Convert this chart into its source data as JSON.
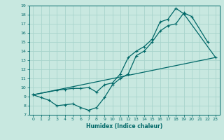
{
  "title": "",
  "xlabel": "Humidex (Indice chaleur)",
  "bg_color": "#c8e8e0",
  "grid_color": "#a8d4cc",
  "line_color": "#006868",
  "xmin": -0.5,
  "xmax": 23.5,
  "ymin": 7,
  "ymax": 19,
  "yticks": [
    7,
    8,
    9,
    10,
    11,
    12,
    13,
    14,
    15,
    16,
    17,
    18,
    19
  ],
  "xticks": [
    0,
    1,
    2,
    3,
    4,
    5,
    6,
    7,
    8,
    9,
    10,
    11,
    12,
    13,
    14,
    15,
    16,
    17,
    18,
    19,
    20,
    21,
    22,
    23
  ],
  "line1_x": [
    0,
    1,
    2,
    3,
    4,
    5,
    6,
    7,
    8,
    9,
    10,
    11,
    12,
    13,
    14,
    15,
    16,
    17,
    18,
    19,
    20,
    22
  ],
  "line1_y": [
    9.2,
    8.9,
    8.6,
    8.0,
    8.1,
    8.2,
    7.8,
    7.5,
    7.8,
    8.9,
    10.3,
    11.0,
    11.5,
    13.5,
    14.0,
    15.0,
    16.2,
    16.8,
    17.0,
    18.2,
    17.8,
    15.0
  ],
  "line2_x": [
    0,
    3,
    4,
    5,
    6,
    7,
    8,
    9,
    10,
    11,
    12,
    13,
    14,
    15,
    16,
    17,
    18,
    19,
    23
  ],
  "line2_y": [
    9.2,
    9.7,
    9.8,
    9.9,
    9.9,
    10.0,
    9.5,
    10.3,
    10.5,
    11.5,
    13.3,
    14.0,
    14.5,
    15.3,
    17.2,
    17.5,
    18.7,
    18.1,
    13.3
  ],
  "line3_x": [
    0,
    23
  ],
  "line3_y": [
    9.2,
    13.3
  ]
}
